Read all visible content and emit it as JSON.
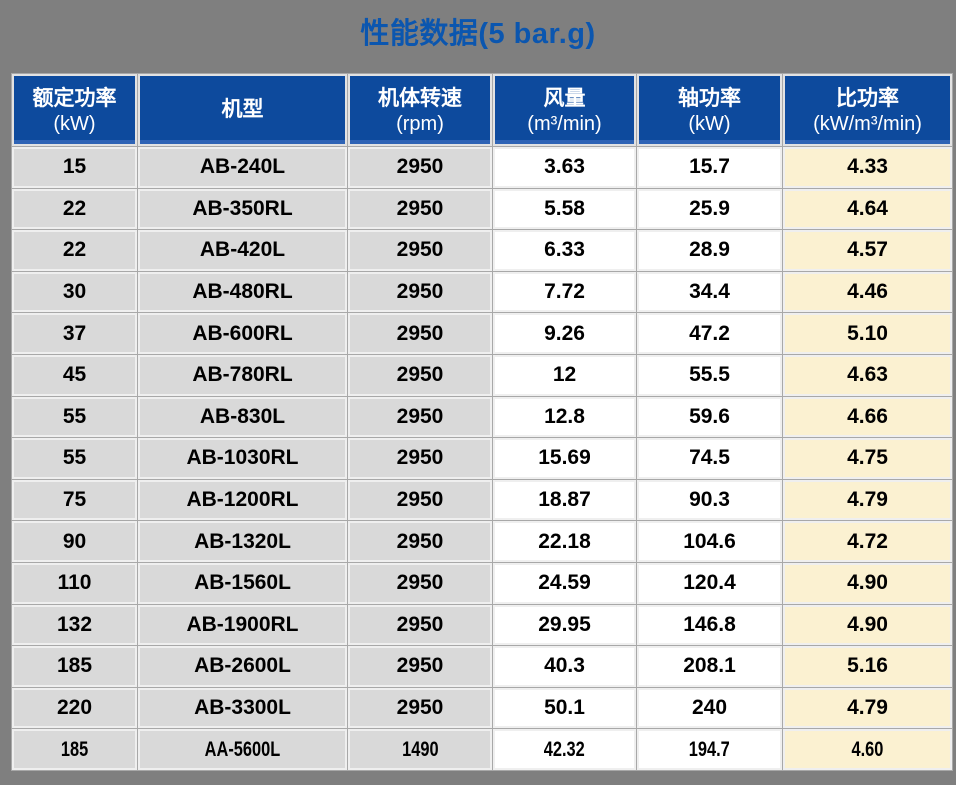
{
  "title": "性能数据(5 bar.g)",
  "colors": {
    "page_background": "#7f7f7f",
    "title_blue": "#0b56af",
    "header_blue": "#0d4a9d",
    "header_accent_blue": "#2e63b5",
    "gray_cell": "#d9d9d9",
    "white_cell": "#ffffff",
    "cream_cell": "#fbf1d1"
  },
  "table": {
    "columns": [
      {
        "key": "rated-power",
        "label": "额定功率",
        "unit": "(kW)"
      },
      {
        "key": "model",
        "label": "机型",
        "unit": ""
      },
      {
        "key": "speed",
        "label": "机体转速",
        "unit": "(rpm)"
      },
      {
        "key": "air-flow",
        "label": "风量",
        "unit": "(m³/min)"
      },
      {
        "key": "shaft-power",
        "label": "轴功率",
        "unit": "(kW)"
      },
      {
        "key": "specific-power",
        "label": "比功率",
        "unit": "(kW/m³/min)"
      }
    ],
    "rows": [
      [
        "15",
        "AB-240L",
        "2950",
        "3.63",
        "15.7",
        "4.33"
      ],
      [
        "22",
        "AB-350RL",
        "2950",
        "5.58",
        "25.9",
        "4.64"
      ],
      [
        "22",
        "AB-420L",
        "2950",
        "6.33",
        "28.9",
        "4.57"
      ],
      [
        "30",
        "AB-480RL",
        "2950",
        "7.72",
        "34.4",
        "4.46"
      ],
      [
        "37",
        "AB-600RL",
        "2950",
        "9.26",
        "47.2",
        "5.10"
      ],
      [
        "45",
        "AB-780RL",
        "2950",
        "12",
        "55.5",
        "4.63"
      ],
      [
        "55",
        "AB-830L",
        "2950",
        "12.8",
        "59.6",
        "4.66"
      ],
      [
        "55",
        "AB-1030RL",
        "2950",
        "15.69",
        "74.5",
        "4.75"
      ],
      [
        "75",
        "AB-1200RL",
        "2950",
        "18.87",
        "90.3",
        "4.79"
      ],
      [
        "90",
        "AB-1320L",
        "2950",
        "22.18",
        "104.6",
        "4.72"
      ],
      [
        "110",
        "AB-1560L",
        "2950",
        "24.59",
        "120.4",
        "4.90"
      ],
      [
        "132",
        "AB-1900RL",
        "2950",
        "29.95",
        "146.8",
        "4.90"
      ],
      [
        "185",
        "AB-2600L",
        "2950",
        "40.3",
        "208.1",
        "5.16"
      ],
      [
        "220",
        "AB-3300L",
        "2950",
        "50.1",
        "240",
        "4.79"
      ],
      [
        "185",
        "AA-5600L",
        "1490",
        "42.32",
        "194.7",
        "4.60"
      ]
    ]
  }
}
